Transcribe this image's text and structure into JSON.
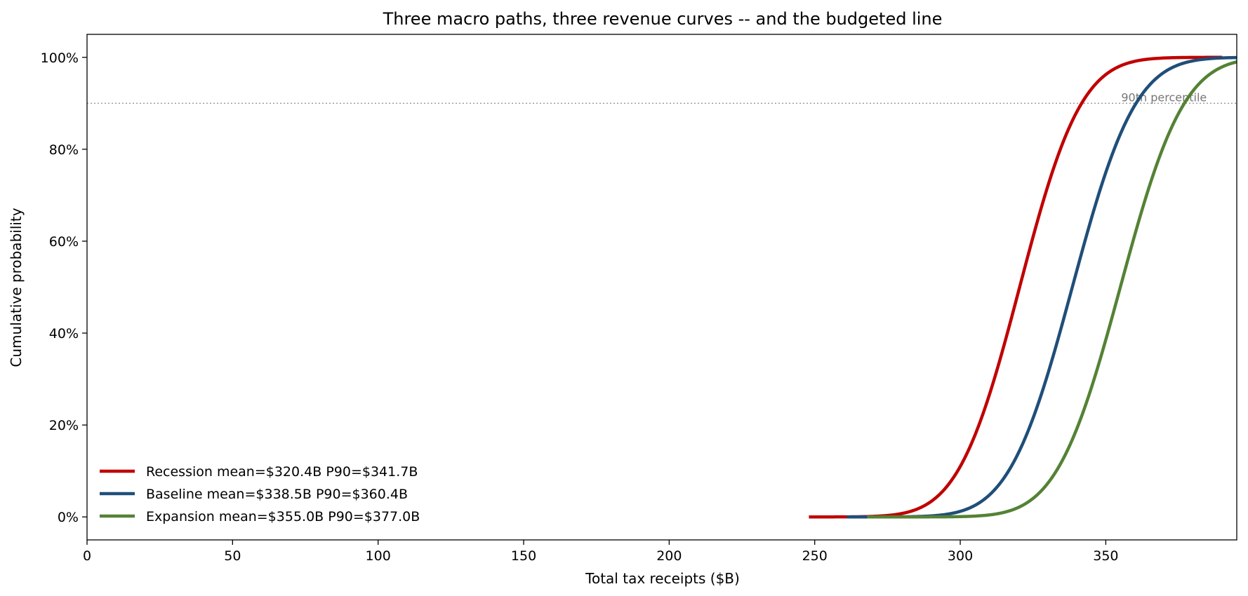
{
  "chart_data": {
    "type": "line",
    "title": "Three macro paths, three revenue curves -- and the budgeted line",
    "xlabel": "Total tax receipts  ($B)",
    "ylabel": "Cumulative probability",
    "xlim": [
      0,
      395
    ],
    "ylim": [
      -0.05,
      1.05
    ],
    "xticks": [
      0,
      50,
      100,
      150,
      200,
      250,
      300,
      350
    ],
    "xtick_labels": [
      "0",
      "50",
      "100",
      "150",
      "200",
      "250",
      "300",
      "350"
    ],
    "yticks": [
      0,
      0.2,
      0.4,
      0.6,
      0.8,
      1.0
    ],
    "ytick_labels": [
      "0%",
      "20%",
      "40%",
      "60%",
      "80%",
      "100%"
    ],
    "grid": false,
    "legend_position": "lower-left",
    "reference_line": {
      "y": 0.9,
      "label": "90th percentile",
      "color": "#999999"
    },
    "series": [
      {
        "name": "Recession   mean=$320.4B   P90=$341.7B",
        "color": "#c00000",
        "mean": 320.4,
        "p90": 341.7,
        "x_range": [
          248,
          390
        ]
      },
      {
        "name": "Baseline   mean=$338.5B   P90=$360.4B",
        "color": "#1f4e79",
        "mean": 338.5,
        "p90": 360.4,
        "x_range": [
          261,
          395
        ]
      },
      {
        "name": "Expansion   mean=$355.0B   P90=$377.0B",
        "color": "#548235",
        "mean": 355.0,
        "p90": 377.0,
        "x_range": [
          268,
          395
        ]
      }
    ]
  }
}
